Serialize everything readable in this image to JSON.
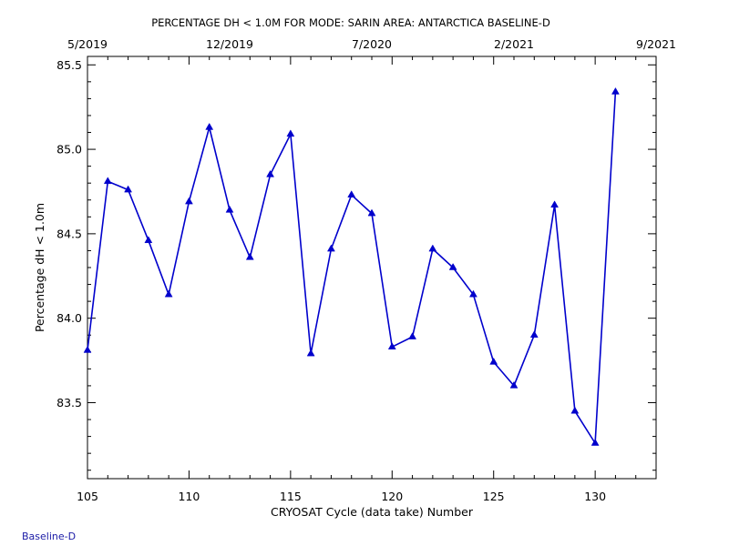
{
  "footer": {
    "label": "Baseline-D"
  },
  "chart_data": {
    "type": "line",
    "title": "PERCENTAGE DH < 1.0M FOR MODE: SARIN AREA: ANTARCTICA BASELINE-D",
    "xlabel": "CRYOSAT Cycle (data take) Number",
    "ylabel": "Percentage dH < 1.0m",
    "xlim": [
      105,
      133
    ],
    "ylim": [
      83.05,
      85.55
    ],
    "x_ticks": [
      105,
      110,
      115,
      120,
      125,
      130
    ],
    "y_ticks": [
      83.5,
      84.0,
      84.5,
      85.0,
      85.5
    ],
    "y_tick_labels": [
      "83.5",
      "84.0",
      "84.5",
      "85.0",
      "85.5"
    ],
    "top_axis": {
      "ticks": [
        {
          "x": 105,
          "label": "5/2019"
        },
        {
          "x": 112,
          "label": "12/2019"
        },
        {
          "x": 119,
          "label": "7/2020"
        },
        {
          "x": 126,
          "label": "2/2021"
        },
        {
          "x": 133,
          "label": "9/2021"
        }
      ]
    },
    "grid": false,
    "marker": "triangle",
    "colors": {
      "series": "#0000cc",
      "axes": "#000000",
      "footer": "#1a1aa6"
    },
    "series": [
      {
        "x": [
          105,
          106,
          107,
          108,
          109,
          110,
          111,
          112,
          113,
          114,
          115,
          116,
          117,
          118,
          119,
          120,
          121,
          122,
          123,
          124,
          125,
          126,
          127,
          128,
          129,
          130,
          131
        ],
        "y": [
          83.81,
          84.81,
          84.76,
          84.46,
          84.14,
          84.69,
          85.13,
          84.64,
          84.36,
          84.85,
          85.09,
          83.79,
          84.41,
          84.73,
          84.62,
          83.83,
          83.89,
          84.41,
          84.3,
          84.14,
          83.74,
          83.6,
          83.9,
          84.67,
          83.45,
          83.26,
          85.34
        ]
      }
    ]
  }
}
